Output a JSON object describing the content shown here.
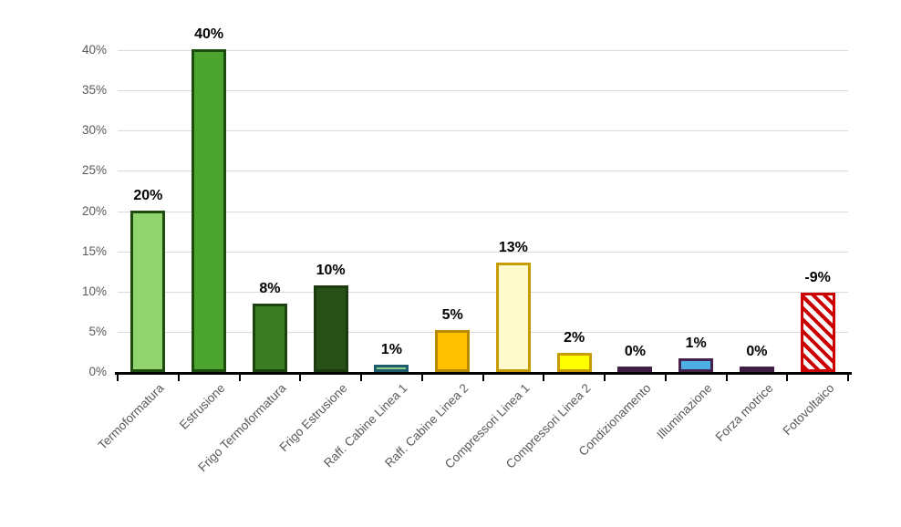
{
  "chart_data": {
    "type": "bar",
    "title": "",
    "categories": [
      "Termoformatura",
      "Estrusione",
      "Frigo Termoformatura",
      "Frigo Estrusione",
      "Raff. Cabine Linea 1",
      "Raff. Cabine Linea 2",
      "Compressori Linea 1",
      "Compressori Linea 2",
      "Condizionamento",
      "Illuminazione",
      "Forza motrice",
      "Fotovoltaico"
    ],
    "values": [
      20,
      40,
      8,
      10,
      1,
      5,
      13,
      2,
      0,
      1,
      0,
      -9
    ],
    "value_labels": [
      "20%",
      "40%",
      "8%",
      "10%",
      "1%",
      "5%",
      "13%",
      "2%",
      "0%",
      "1%",
      "0%",
      "-9%"
    ],
    "drawn_heights_pct": [
      19.7,
      39.8,
      8.2,
      10.4,
      0.6,
      4.9,
      13.3,
      2.0,
      0.3,
      1.4,
      0.3,
      9.5
    ],
    "bars": [
      {
        "fill": "#92D46F",
        "border": "#1E4C0E",
        "hatch": false
      },
      {
        "fill": "#4BA52E",
        "border": "#1E4C0E",
        "hatch": false
      },
      {
        "fill": "#3A7D22",
        "border": "#1E430F",
        "hatch": false
      },
      {
        "fill": "#275116",
        "border": "#1B3A0D",
        "hatch": false
      },
      {
        "fill": "#8FD080",
        "border": "#1F5C6E",
        "hatch": false
      },
      {
        "fill": "#FFC000",
        "border": "#B88A00",
        "hatch": false
      },
      {
        "fill": "#FFFACD",
        "border": "#C79C00",
        "hatch": false
      },
      {
        "fill": "#FFFF00",
        "border": "#C79C00",
        "hatch": false
      },
      {
        "fill": "#3E2144",
        "border": "#3E2144",
        "hatch": false
      },
      {
        "fill": "#4DAFE3",
        "border": "#46234C",
        "hatch": false
      },
      {
        "fill": "#3E2144",
        "border": "#3E2144",
        "hatch": false
      },
      {
        "fill": "#FFFFFF",
        "border": "#CC0000",
        "hatch": true,
        "hatch_color": "#CC0000",
        "hatch_bg": "#FFFFFF"
      }
    ],
    "xlabel": "",
    "ylabel": "",
    "ylim": [
      0,
      40
    ],
    "ytick_values": [
      0,
      5,
      10,
      15,
      20,
      25,
      30,
      35,
      40
    ],
    "ytick_labels": [
      "0%",
      "5%",
      "10%",
      "15%",
      "20%",
      "25%",
      "30%",
      "35%",
      "40%"
    ],
    "grid": true,
    "legend": "none",
    "colors": {
      "background": "#FFFFFF",
      "gridline": "#D9D9D9",
      "axis": "#000000",
      "tick_label": "#595959",
      "value_label": "#000000"
    }
  }
}
